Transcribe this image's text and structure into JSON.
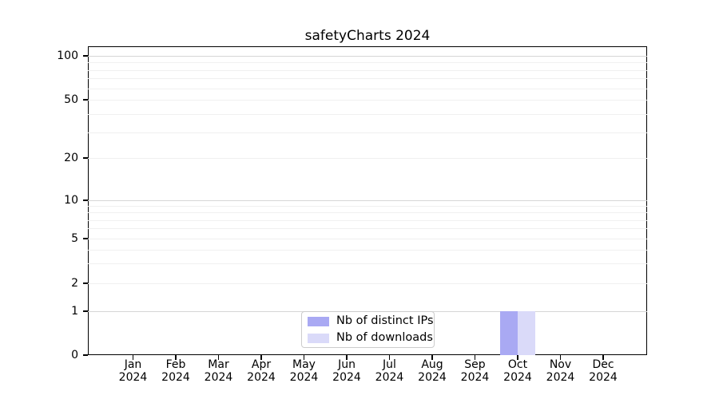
{
  "chart_data": {
    "type": "bar",
    "title": "safetyCharts 2024",
    "categories": [
      "Jan",
      "Feb",
      "Mar",
      "Apr",
      "May",
      "Jun",
      "Jul",
      "Aug",
      "Sep",
      "Oct",
      "Nov",
      "Dec"
    ],
    "category_year": "2024",
    "series": [
      {
        "name": "Nb of distinct IPs",
        "color": "#a9a9f3",
        "values": [
          0,
          0,
          0,
          0,
          0,
          0,
          0,
          0,
          0,
          1,
          0,
          0
        ]
      },
      {
        "name": "Nb of downloads",
        "color": "#dadaf9",
        "values": [
          0,
          0,
          0,
          0,
          0,
          0,
          0,
          0,
          0,
          1,
          0,
          0
        ]
      }
    ],
    "xlabel": "",
    "ylabel": "",
    "yscale": "symlog",
    "ylim": [
      0,
      117
    ],
    "y_ticks": [
      100,
      50,
      20,
      10,
      5,
      2,
      1,
      0
    ],
    "grid": "horizontal-minor-log",
    "legend_position": "lower center",
    "colors": {
      "axis": "#000000",
      "grid_minor": "#f0f0f0",
      "grid_decade": "#d6d6d6",
      "background": "#ffffff"
    }
  }
}
